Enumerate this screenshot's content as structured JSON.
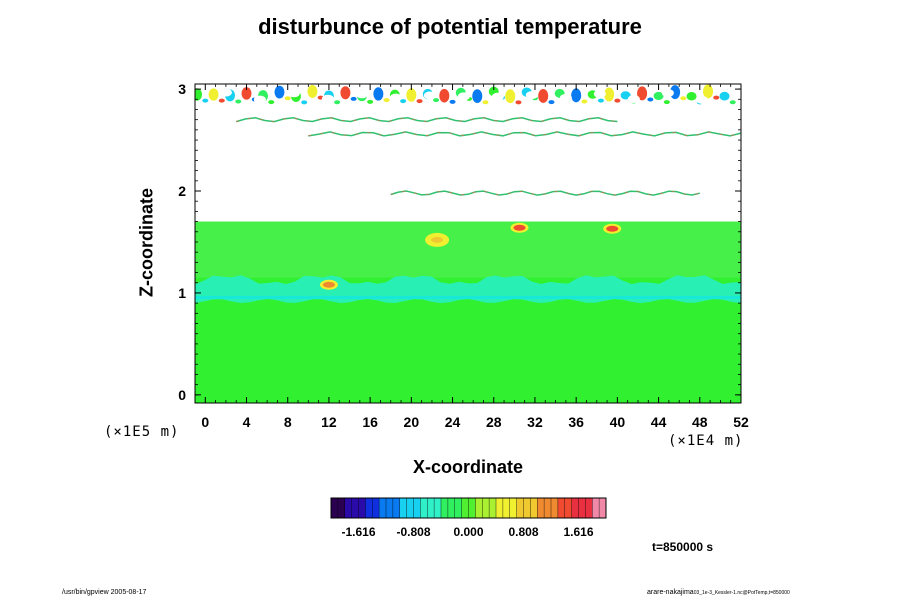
{
  "chart_data": {
    "type": "heatmap",
    "title": "disturbunce of potential temperature",
    "xlabel": "X-coordinate",
    "ylabel": "Z-coordinate",
    "x_unit": "(×1E4 m)",
    "y_unit": "(×1E5 m)",
    "x_ticks": [
      "0",
      "4",
      "8",
      "12",
      "16",
      "20",
      "24",
      "28",
      "32",
      "36",
      "40",
      "44",
      "48",
      "52"
    ],
    "y_ticks": [
      "0",
      "1",
      "2",
      "3"
    ],
    "xlim": [
      -1,
      52
    ],
    "ylim": [
      -0.08,
      3.05
    ],
    "colorbar": {
      "min": -2.02,
      "max": 2.02,
      "tick_labels": [
        "-1.616",
        "-0.808",
        "0.000",
        "0.808",
        "1.616"
      ],
      "tick_values": [
        -1.616,
        -0.808,
        0.0,
        0.808,
        1.616
      ],
      "colors": [
        "#2a0050",
        "#2a0aa8",
        "#1030e0",
        "#0a7af0",
        "#18d0f0",
        "#30f0c8",
        "#30f060",
        "#50f030",
        "#a8f030",
        "#f0f030",
        "#f0c830",
        "#f08a30",
        "#f04a30",
        "#e83040",
        "#f088a8"
      ]
    },
    "time_label": "t=850000 s",
    "regions": [
      {
        "z": [
          -0.08,
          0.92
        ],
        "value": "near zero (green)"
      },
      {
        "z": [
          0.92,
          1.15
        ],
        "value": "slightly negative (cyan band)"
      },
      {
        "z": [
          1.15,
          1.7
        ],
        "value": "near zero with positive patches near top"
      },
      {
        "z": [
          1.7,
          3.05
        ],
        "value": "undefined (white) with thin noisy layers near z=2.0, 2.6 and turbulent layer near z=3.0"
      }
    ],
    "features": [
      {
        "x": 30.5,
        "z": 1.64,
        "value": 1.8
      },
      {
        "x": 39.5,
        "z": 1.63,
        "value": 1.9
      },
      {
        "x": 22.5,
        "z": 1.52,
        "value": 1.0
      },
      {
        "x": 12.0,
        "z": 1.08,
        "value": 1.4
      }
    ]
  },
  "footer": {
    "left": "/usr/bin/gpview 2005-08-17",
    "right_main": "arare-nakajima",
    "right_sub": "03_1e-3_Kessler-1.nc@PotTemp,t=850000"
  }
}
